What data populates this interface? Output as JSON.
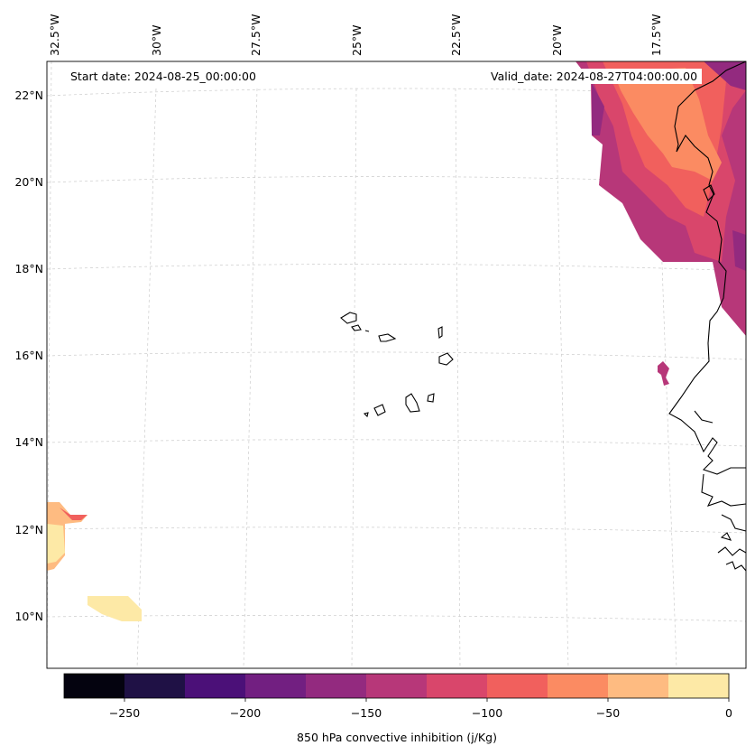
{
  "map": {
    "start_date": "Start date: 2024-08-25_00:00:00",
    "valid_date": "Valid_date: 2024-08-27T04:00:00.00",
    "lon_labels": [
      "32.5°W",
      "30°W",
      "27.5°W",
      "25°W",
      "22.5°W",
      "20°W",
      "17.5°W"
    ],
    "lat_labels": [
      "22°N",
      "20°N",
      "18°N",
      "16°N",
      "14°N",
      "12°N",
      "10°N"
    ],
    "coastline_color": "#000000",
    "gridlines": true
  },
  "colorbar": {
    "label": "850 hPa convective inhibition (j/Kg)",
    "ticks": [
      "−250",
      "−200",
      "−150",
      "−100",
      "−50",
      "0"
    ],
    "tick_values": [
      -250,
      -200,
      -150,
      -100,
      -50,
      0
    ],
    "range": [
      -275,
      0
    ],
    "levels": [
      -275,
      -250,
      -225,
      -200,
      -175,
      -150,
      -125,
      -100,
      -75,
      -50,
      -25,
      0
    ],
    "colors": [
      "#04030f",
      "#1f1145",
      "#4b1078",
      "#721f81",
      "#932a7f",
      "#b73779",
      "#d9466b",
      "#f1605d",
      "#fb8b62",
      "#febb81",
      "#fde9a6"
    ]
  }
}
